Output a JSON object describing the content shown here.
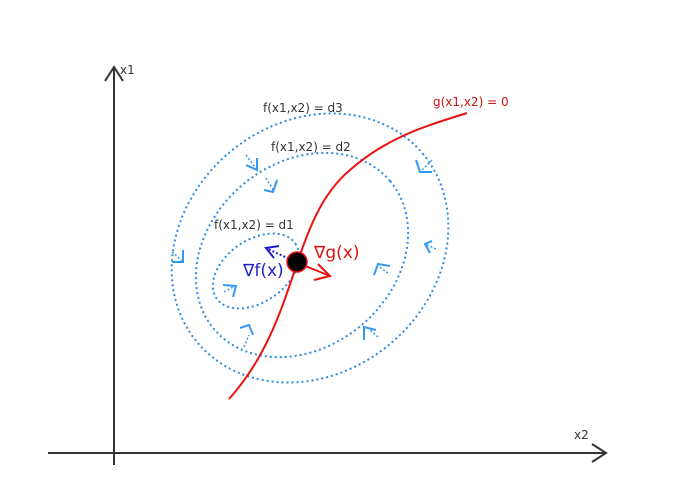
{
  "axes": {
    "x_label": "x2",
    "y_label": "x1"
  },
  "contours": [
    {
      "label": "f(x1,x2) = d1"
    },
    {
      "label": "f(x1,x2) = d2"
    },
    {
      "label": "f(x1,x2) = d3"
    }
  ],
  "constraint": {
    "label": "g(x1,x2) = 0"
  },
  "gradients": {
    "grad_g": "∇g(x)",
    "grad_f": "∇f(x)"
  },
  "colors": {
    "axis": "#333333",
    "contour": "#2e8be0",
    "arrow_head": "#3399ee",
    "constraint": "#ee1111",
    "grad_f": "#1a1acc",
    "point": "#000000"
  }
}
